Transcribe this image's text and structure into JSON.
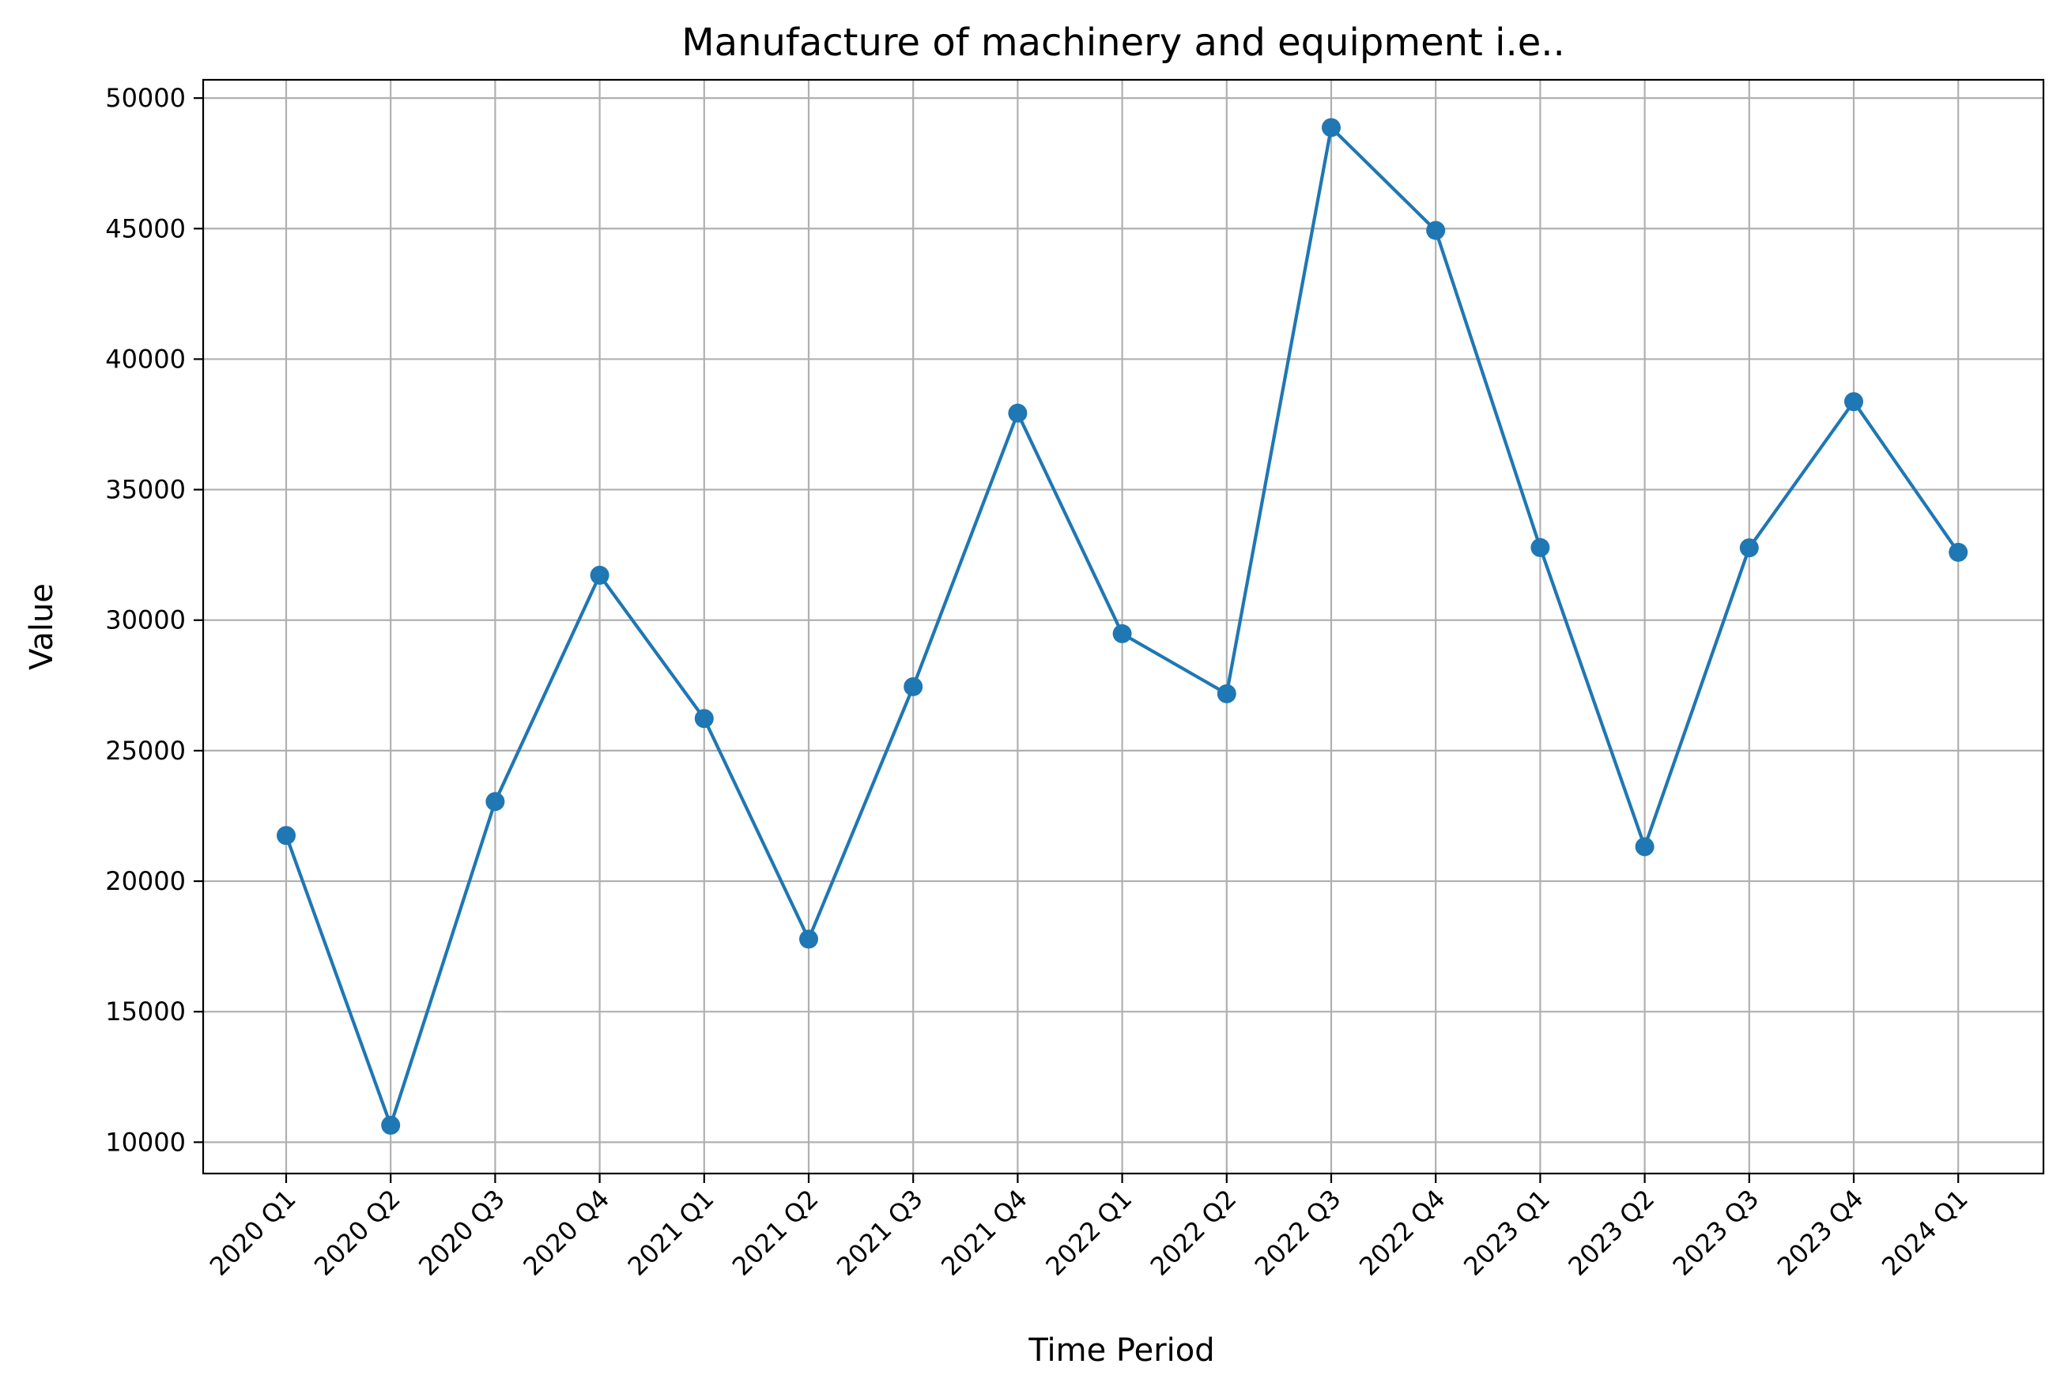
{
  "chart_data": {
    "type": "line",
    "title": "Manufacture of machinery and equipment i.e..",
    "xlabel": "Time Period",
    "ylabel": "Value",
    "categories": [
      "2020 Q1",
      "2020 Q2",
      "2020 Q3",
      "2020 Q4",
      "2021 Q1",
      "2021 Q2",
      "2021 Q3",
      "2021 Q4",
      "2022 Q1",
      "2022 Q2",
      "2022 Q3",
      "2022 Q4",
      "2023 Q1",
      "2023 Q2",
      "2023 Q3",
      "2023 Q4",
      "2024 Q1"
    ],
    "series": [
      {
        "values": [
          21750,
          10650,
          23050,
          31720,
          26230,
          17780,
          27450,
          37930,
          29480,
          27180,
          48870,
          44930,
          32780,
          21320,
          32770,
          38370,
          32600
        ],
        "color": "#1f77b4"
      }
    ],
    "yticks": [
      10000,
      15000,
      20000,
      25000,
      30000,
      35000,
      40000,
      45000,
      50000
    ],
    "ylim": [
      8800,
      50700
    ],
    "grid": true,
    "legend": "none"
  }
}
